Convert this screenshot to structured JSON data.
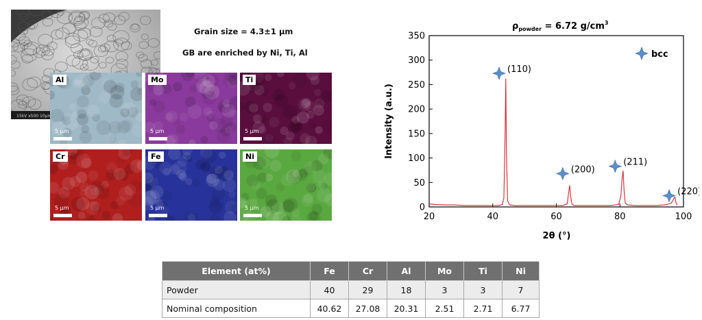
{
  "sem_image": {
    "footer_text": "15kV  x500  10µm"
  },
  "captions": {
    "grain_size": "Grain size = 4.3±1 µm",
    "gb_enriched": "GB are enriched by Ni, Ti, Al"
  },
  "eds_maps": [
    {
      "element": "Al",
      "scale": "5 µm",
      "color": "#9fb9c6"
    },
    {
      "element": "Mo",
      "scale": "5 µm",
      "color": "#8a3a9c"
    },
    {
      "element": "Ti",
      "scale": "5 µm",
      "color": "#5a0e3e"
    },
    {
      "element": "Cr",
      "scale": "5 µm",
      "color": "#b01e1e"
    },
    {
      "element": "Fe",
      "scale": "5 µm",
      "color": "#27339a"
    },
    {
      "element": "Ni",
      "scale": "5 µm",
      "color": "#5aa840"
    }
  ],
  "chart_data": {
    "type": "line",
    "title_prefix": "ρ",
    "title_sub": "powder",
    "title_value": " = 6.72 g/cm",
    "title_sup": "3",
    "xlabel": "2θ (°)",
    "ylabel": "Intensity (a.u.)",
    "xlim": [
      20,
      100
    ],
    "ylim": [
      0,
      350
    ],
    "xticks": [
      20,
      40,
      60,
      80,
      100
    ],
    "yticks": [
      0,
      50,
      100,
      150,
      200,
      250,
      300,
      350
    ],
    "grid": false,
    "line_color": "#d8232a",
    "series": [
      {
        "x": [
          20,
          22,
          25,
          28,
          31,
          34,
          37,
          40,
          42,
          43.0,
          43.5,
          43.9,
          44.1,
          44.3,
          44.7,
          45.3,
          47,
          50,
          53,
          56,
          59,
          62,
          63.4,
          63.9,
          64.2,
          64.5,
          64.9,
          65.5,
          68,
          71,
          74,
          77,
          79.6,
          80.3,
          80.7,
          81.0,
          81.3,
          81.7,
          82.4,
          85,
          88,
          91,
          94,
          96.0,
          96.6,
          97.0,
          97.3,
          97.6,
          98.0
        ],
        "y": [
          6,
          5,
          4,
          4,
          3,
          3,
          3,
          3,
          3,
          5,
          18,
          150,
          262,
          110,
          12,
          4,
          3,
          3,
          3,
          3,
          3,
          3,
          6,
          30,
          44,
          22,
          6,
          3,
          3,
          3,
          3,
          3,
          5,
          22,
          58,
          74,
          34,
          8,
          4,
          3,
          3,
          3,
          4,
          7,
          12,
          18,
          20,
          10,
          4
        ]
      }
    ],
    "legend": {
      "label": "bcc",
      "position": "top-right"
    },
    "peaks": [
      {
        "label": "(110)",
        "x": 42.0,
        "y": 273
      },
      {
        "label": "(200)",
        "x": 62.0,
        "y": 68
      },
      {
        "label": "(211)",
        "x": 78.5,
        "y": 83
      },
      {
        "label": "(220)",
        "x": 95.5,
        "y": 23
      }
    ]
  },
  "table": {
    "headers": [
      "Element (at%)",
      "Fe",
      "Cr",
      "Al",
      "Mo",
      "Ti",
      "Ni"
    ],
    "rows": [
      [
        "Powder",
        "40",
        "29",
        "18",
        "3",
        "3",
        "7"
      ],
      [
        "Nominal composition",
        "40.62",
        "27.08",
        "20.31",
        "2.51",
        "2.71",
        "6.77"
      ]
    ]
  }
}
